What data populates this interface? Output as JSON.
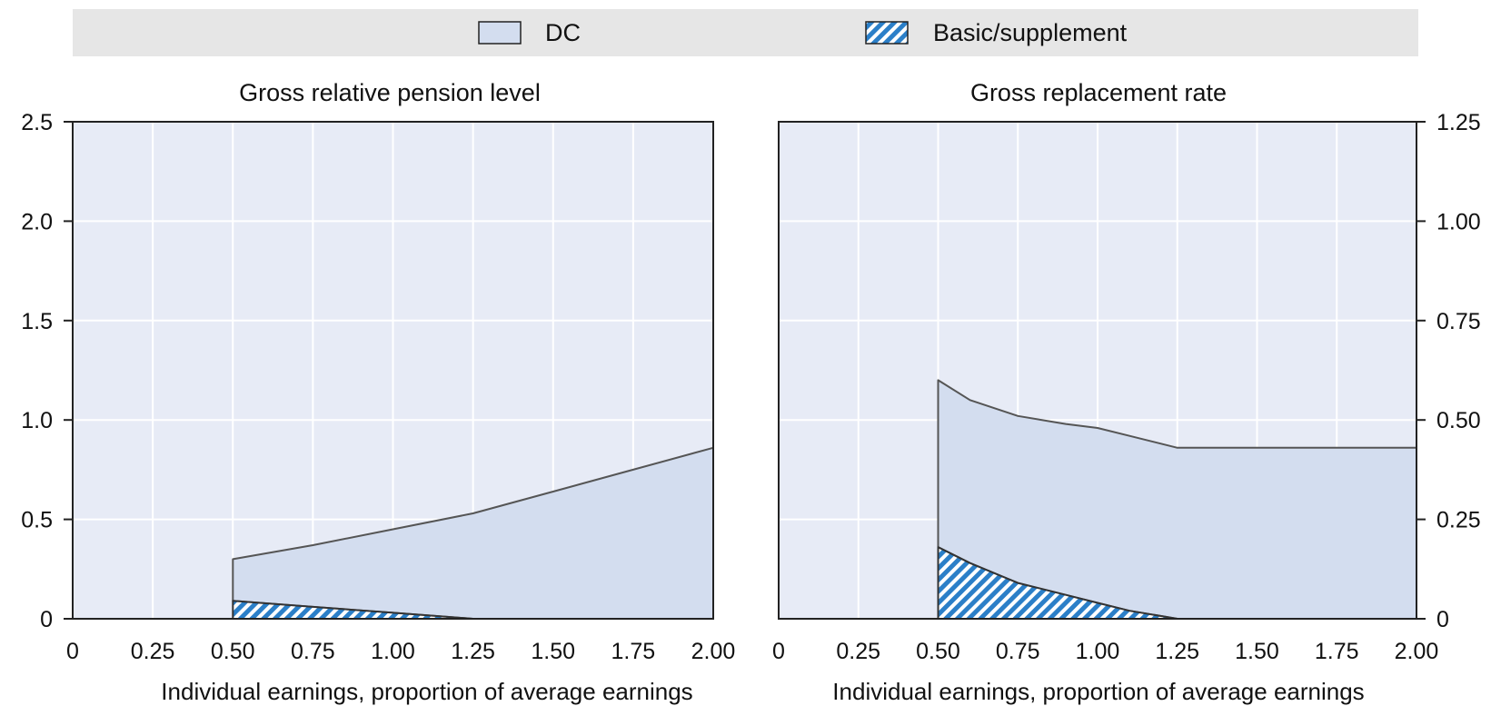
{
  "legend": {
    "items": [
      {
        "label": "DC",
        "color": "#d3ddef",
        "pattern": "solid"
      },
      {
        "label": "Basic/supplement",
        "color": "#2b7fc8",
        "pattern": "diagonal-hatch"
      }
    ]
  },
  "chart_data": [
    {
      "type": "area",
      "title": "Gross relative pension level",
      "xlabel": "Individual earnings, proportion of average earnings",
      "ylabel": "",
      "xlim": [
        0,
        2.0
      ],
      "ylim": [
        0,
        2.5
      ],
      "x_ticks": [
        "0",
        "0.25",
        "0.50",
        "0.75",
        "1.00",
        "1.25",
        "1.50",
        "1.75",
        "2.00"
      ],
      "y_ticks": [
        "0",
        "0.5",
        "1.0",
        "1.5",
        "2.0",
        "2.5"
      ],
      "y_axis_side": "left",
      "grid": true,
      "stacked": true,
      "x": [
        0.5,
        0.75,
        1.0,
        1.25,
        1.5,
        1.75,
        2.0
      ],
      "series": [
        {
          "name": "Basic/supplement",
          "values": [
            0.09,
            0.06,
            0.03,
            0.0,
            0.0,
            0.0,
            0.0
          ]
        },
        {
          "name": "DC",
          "values": [
            0.21,
            0.31,
            0.42,
            0.53,
            0.64,
            0.75,
            0.86
          ]
        }
      ]
    },
    {
      "type": "area",
      "title": "Gross replacement rate",
      "xlabel": "Individual earnings, proportion of average earnings",
      "ylabel": "",
      "xlim": [
        0,
        2.0
      ],
      "ylim": [
        0,
        1.25
      ],
      "x_ticks": [
        "0",
        "0.25",
        "0.50",
        "0.75",
        "1.00",
        "1.25",
        "1.50",
        "1.75",
        "2.00"
      ],
      "y_ticks": [
        "0",
        "0.25",
        "0.50",
        "0.75",
        "1.00",
        "1.25"
      ],
      "y_axis_side": "right",
      "grid": true,
      "stacked": true,
      "x": [
        0.5,
        0.6,
        0.75,
        0.9,
        1.0,
        1.1,
        1.25,
        1.5,
        1.75,
        2.0
      ],
      "series": [
        {
          "name": "Basic/supplement",
          "values": [
            0.18,
            0.14,
            0.09,
            0.06,
            0.04,
            0.02,
            0.0,
            0.0,
            0.0,
            0.0
          ]
        },
        {
          "name": "DC",
          "values": [
            0.42,
            0.41,
            0.42,
            0.43,
            0.44,
            0.44,
            0.43,
            0.43,
            0.43,
            0.43
          ]
        }
      ]
    }
  ]
}
